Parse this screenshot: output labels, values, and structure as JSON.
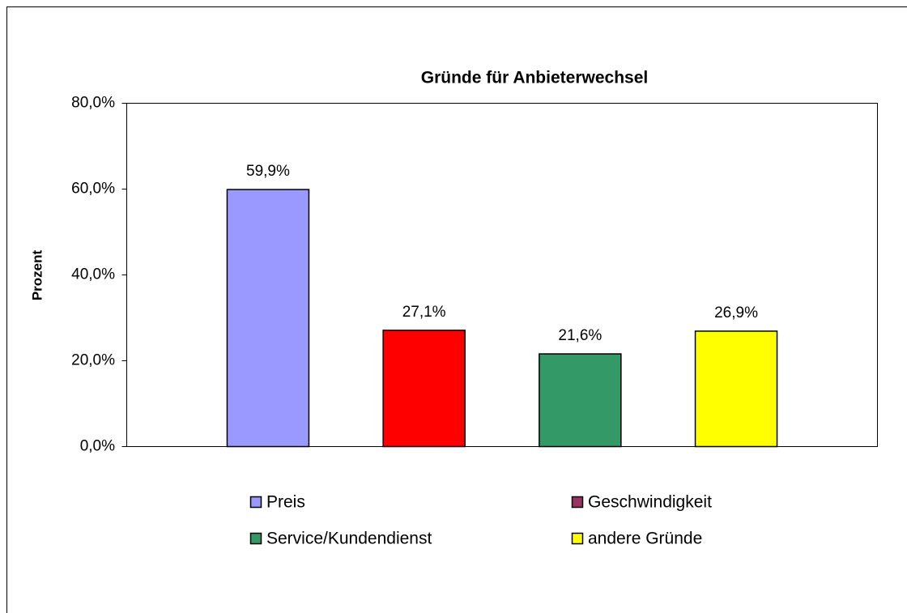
{
  "chart_data": {
    "type": "bar",
    "title": "Gründe für Anbieterwechsel",
    "y_label": "Prozent",
    "categories": [
      null
    ],
    "series": [
      {
        "name": "Preis",
        "color": "#9999ff",
        "legend_color": "#9999ff",
        "values": [
          59.9
        ],
        "value_labels": [
          "59,9%"
        ]
      },
      {
        "name": "Geschwindigkeit",
        "color": "#ff0000",
        "legend_color": "#993366",
        "values": [
          27.1
        ],
        "value_labels": [
          "27,1%"
        ]
      },
      {
        "name": "Service/Kundendienst",
        "color": "#339966",
        "legend_color": "#339966",
        "values": [
          21.6
        ],
        "value_labels": [
          "21,6%"
        ]
      },
      {
        "name": "andere Gründe",
        "color": "#ffff00",
        "legend_color": "#ffff00",
        "values": [
          26.9
        ],
        "value_labels": [
          "26,9%"
        ]
      }
    ],
    "ylim": [
      0,
      80
    ],
    "yticks": [
      {
        "value": 0,
        "label": "0,0%"
      },
      {
        "value": 20,
        "label": "20,0%"
      },
      {
        "value": 40,
        "label": "40,0%"
      },
      {
        "value": 60,
        "label": "60,0%"
      },
      {
        "value": 80,
        "label": "80,0%"
      }
    ],
    "grid": false,
    "legend": "bottom"
  }
}
